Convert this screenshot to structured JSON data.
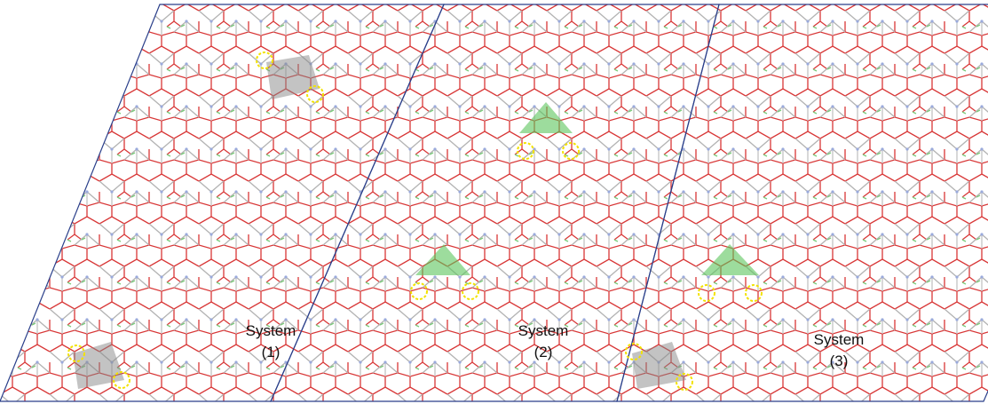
{
  "panels": [
    {
      "title": "System",
      "number": "(1)"
    },
    {
      "title": "System",
      "number": "(2)"
    },
    {
      "title": "System",
      "number": "(3)"
    }
  ]
}
